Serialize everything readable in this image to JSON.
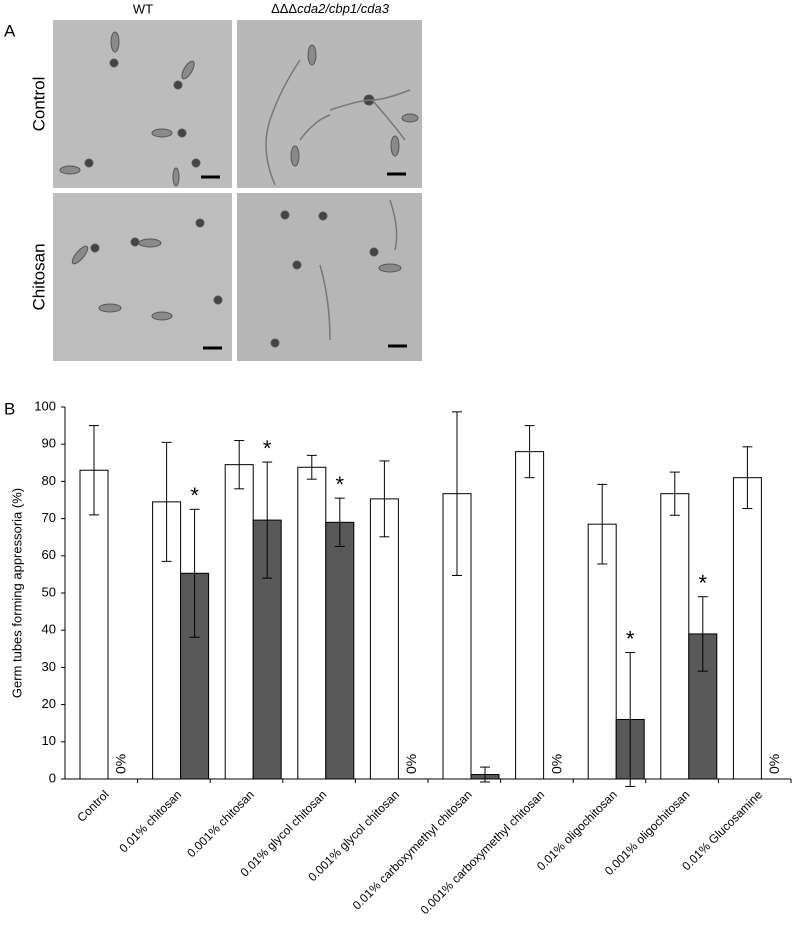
{
  "panel_a": {
    "label": "A",
    "columns": [
      {
        "text": "WT"
      },
      {
        "prefix": "ΔΔΔ",
        "text": "cda2/cbp1/cda3"
      }
    ],
    "rows": [
      "Control",
      "Chitosan"
    ]
  },
  "panel_b": {
    "label": "B"
  },
  "chart_data": {
    "type": "bar",
    "y_label": "Germ tubes forming appressoria (%)",
    "categories": [
      "Control",
      "0.01% chitosan",
      "0.001% chitosan",
      "0.01% glycol chitosan",
      "0.001% glycol chitosan",
      "0.01% carboxymethyl chitosan",
      "0.001% carboxymethyl chitosan",
      "0.01% oligochitosan",
      "0.001% oligochitosan",
      "0.01% Glucosamine"
    ],
    "series": [
      {
        "color": "#ffffff",
        "values": [
          83,
          74.5,
          84.5,
          83.8,
          75.3,
          76.7,
          88,
          68.5,
          76.7,
          81
        ],
        "errors": [
          12,
          16,
          6.5,
          3.2,
          10.2,
          22,
          7,
          10.7,
          5.8,
          8.3
        ]
      },
      {
        "color": "#595959",
        "values": [
          0,
          55.3,
          69.6,
          69,
          0,
          1.2,
          0,
          16,
          39,
          0
        ],
        "errors": [
          null,
          17.2,
          15.6,
          6.5,
          null,
          2,
          null,
          18,
          10,
          null
        ],
        "value_labels": [
          "0%",
          null,
          null,
          null,
          "0%",
          null,
          "0%",
          null,
          null,
          "0%"
        ],
        "annotations": [
          null,
          "*",
          "*",
          "*",
          null,
          null,
          null,
          "*",
          "*",
          null
        ]
      }
    ],
    "ylim": [
      0,
      100
    ],
    "yticks": [
      0,
      10,
      20,
      30,
      40,
      50,
      60,
      70,
      80,
      90,
      100
    ],
    "grid": false
  }
}
